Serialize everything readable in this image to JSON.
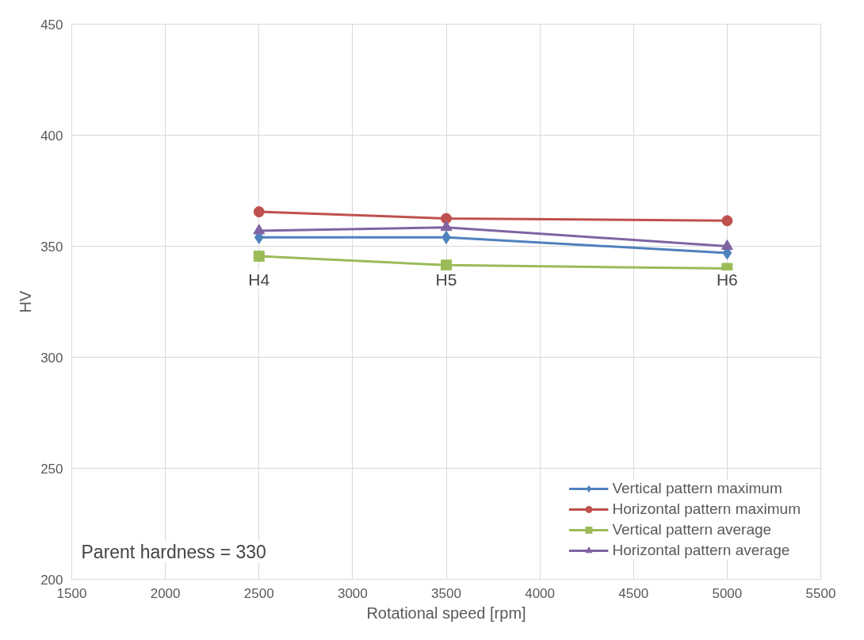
{
  "chart_data": {
    "type": "line",
    "xlabel": "Rotational speed [rpm]",
    "ylabel": "HV",
    "x": [
      2500,
      3500,
      5000
    ],
    "xlim": [
      1500,
      5500
    ],
    "xticks": [
      1500,
      2000,
      2500,
      3000,
      3500,
      4000,
      4500,
      5000,
      5500
    ],
    "ylim": [
      200,
      450
    ],
    "yticks": [
      200,
      250,
      300,
      350,
      400,
      450
    ],
    "grid": true,
    "legend": "bottom right",
    "line_style": "solid",
    "series": [
      {
        "name": "Vertical pattern maximum",
        "color": "#4f81bd",
        "marker": "diamond",
        "values": [
          354,
          354,
          347
        ]
      },
      {
        "name": "Horizontal pattern maximum",
        "color": "#c0504d",
        "marker": "circle",
        "values": [
          365.5,
          362.5,
          361.5
        ]
      },
      {
        "name": "Vertical pattern average",
        "color": "#9bbb59",
        "marker": "square",
        "values": [
          345.5,
          341.5,
          340
        ]
      },
      {
        "name": "Horizontal pattern average",
        "color": "#8064a2",
        "marker": "triangle",
        "values": [
          357,
          358.5,
          350
        ]
      }
    ],
    "annotations": [
      {
        "text": "H4",
        "x": 2500,
        "y": 335
      },
      {
        "text": "H5",
        "x": 3500,
        "y": 335
      },
      {
        "text": "H6",
        "x": 5000,
        "y": 335
      },
      "Parent hardness = 330"
    ]
  }
}
